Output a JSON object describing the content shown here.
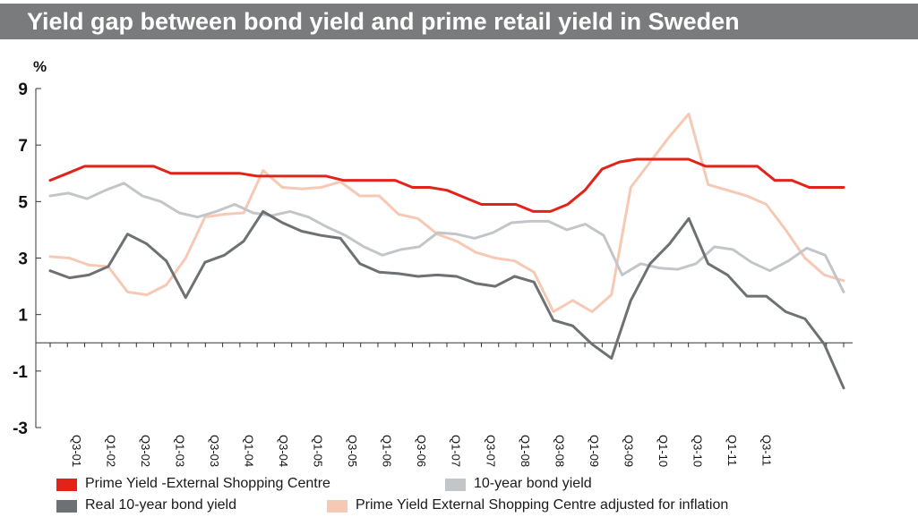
{
  "title": "Yield gap between bond yield and prime retail yield in Sweden",
  "chart_data": {
    "type": "line",
    "unit_label": "%",
    "ylim": [
      -3,
      9
    ],
    "yticks": [
      9,
      7,
      5,
      3,
      1,
      -1,
      -3
    ],
    "tick_labels": [
      "Q3-01",
      "Q1-02",
      "Q3-02",
      "Q1-03",
      "Q3-03",
      "Q1-04",
      "Q3-04",
      "Q1-05",
      "Q3-05",
      "Q1-06",
      "Q3-06",
      "Q1-07",
      "Q3-07",
      "Q1-08",
      "Q3-08",
      "Q1-09",
      "Q3-09",
      "Q1-10",
      "Q3-10",
      "Q1-11",
      "Q3-11"
    ],
    "series": [
      {
        "name": "Prime Yield -External Shopping Centre",
        "color": "#e2231a",
        "values": [
          5.75,
          6.0,
          6.25,
          6.25,
          6.25,
          6.25,
          6.25,
          6.0,
          6.0,
          6.0,
          6.0,
          6.0,
          5.9,
          5.9,
          5.9,
          5.9,
          5.9,
          5.75,
          5.75,
          5.75,
          5.75,
          5.5,
          5.5,
          5.4,
          5.15,
          4.9,
          4.9,
          4.9,
          4.65,
          4.65,
          4.9,
          5.4,
          6.15,
          6.4,
          6.5,
          6.5,
          6.5,
          6.5,
          6.25,
          6.25,
          6.25,
          6.25,
          5.75,
          5.75,
          5.5,
          5.5,
          5.5
        ]
      },
      {
        "name": "10-year bond yield",
        "color": "#c3c6c9",
        "values": [
          5.2,
          5.3,
          5.1,
          5.4,
          5.65,
          5.2,
          5.0,
          4.6,
          4.45,
          4.65,
          4.9,
          4.6,
          4.5,
          4.65,
          4.45,
          4.1,
          3.8,
          3.4,
          3.1,
          3.3,
          3.4,
          3.9,
          3.85,
          3.7,
          3.9,
          4.25,
          4.3,
          4.3,
          4.0,
          4.2,
          3.8,
          2.4,
          2.8,
          2.65,
          2.6,
          2.8,
          3.4,
          3.3,
          2.85,
          2.55,
          2.9,
          3.35,
          3.1,
          1.8
        ]
      },
      {
        "name": "Real 10-year bond yield",
        "color": "#6d7173",
        "values": [
          2.55,
          2.3,
          2.4,
          2.7,
          3.85,
          3.5,
          2.9,
          1.6,
          2.85,
          3.1,
          3.6,
          4.65,
          4.25,
          3.95,
          3.8,
          3.7,
          2.8,
          2.5,
          2.45,
          2.35,
          2.4,
          2.35,
          2.1,
          2.0,
          2.35,
          2.15,
          0.8,
          0.6,
          -0.05,
          -0.55,
          1.5,
          2.8,
          3.5,
          4.4,
          2.8,
          2.4,
          1.65,
          1.65,
          1.1,
          0.85,
          -0.05,
          -1.6
        ]
      },
      {
        "name": "Prime Yield External Shopping Centre adjusted for inflation",
        "color": "#f6c9b4",
        "values": [
          3.05,
          3.0,
          2.75,
          2.7,
          1.8,
          1.7,
          2.05,
          3.0,
          4.45,
          4.55,
          4.6,
          6.1,
          5.5,
          5.45,
          5.5,
          5.7,
          5.2,
          5.2,
          4.55,
          4.4,
          3.85,
          3.6,
          3.2,
          3.0,
          2.9,
          2.5,
          1.1,
          1.5,
          1.1,
          1.7,
          5.5,
          6.4,
          7.3,
          8.1,
          5.6,
          5.4,
          5.2,
          4.9,
          4.0,
          3.0,
          2.4,
          2.2
        ]
      }
    ],
    "grid": false
  },
  "legend": [
    {
      "label": "Prime Yield -External Shopping Centre",
      "color": "#e2231a"
    },
    {
      "label": "10-year bond yield",
      "color": "#c3c6c9"
    },
    {
      "label": "Real 10-year bond yield",
      "color": "#6d7173"
    },
    {
      "label": "Prime Yield External Shopping Centre adjusted for inflation",
      "color": "#f6c9b4"
    }
  ]
}
